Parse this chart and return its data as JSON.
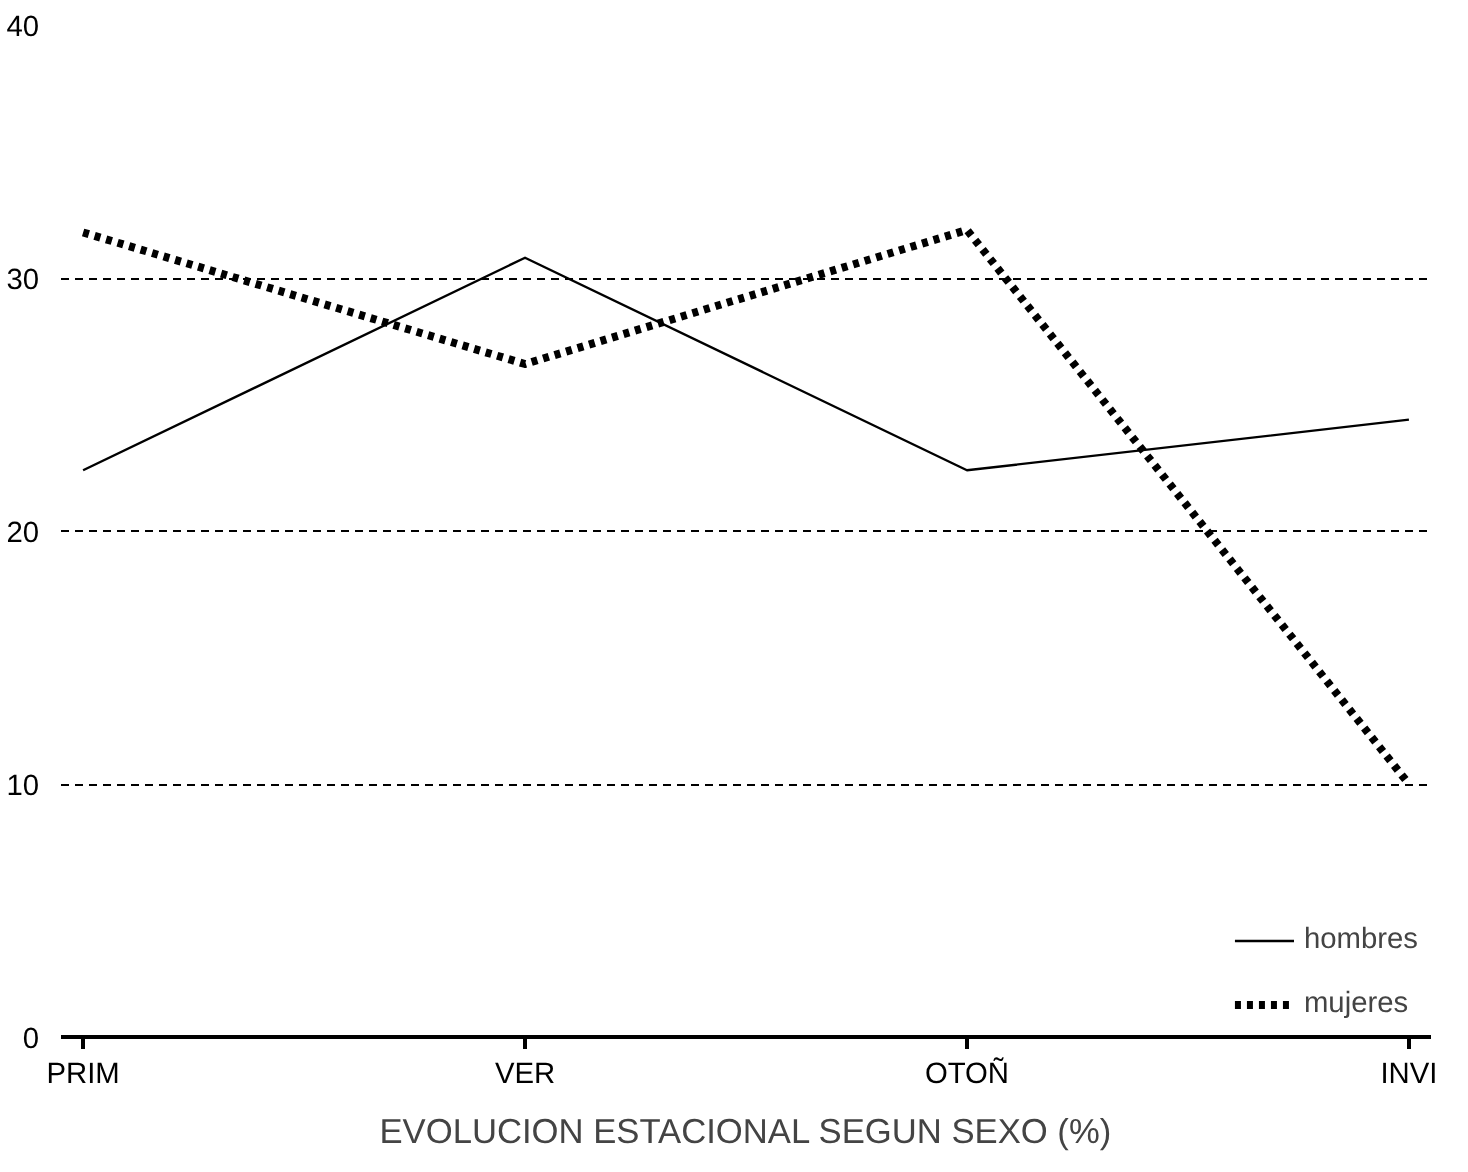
{
  "chart_data": {
    "type": "line",
    "title": "EVOLUCION ESTACIONAL SEGUN SEXO (%)",
    "categories": [
      "PRIM",
      "VER",
      "OTOÑ",
      "INVI"
    ],
    "series": [
      {
        "name": "hombres",
        "color": "#000000",
        "line_style": "solid",
        "values": [
          22.4,
          30.8,
          22.4,
          24.4
        ]
      },
      {
        "name": "mujeres",
        "color": "#000000",
        "line_style": "dotted",
        "values": [
          31.8,
          26.6,
          31.9,
          10.0
        ]
      }
    ],
    "ylim": [
      0,
      40
    ],
    "yticks": [
      0,
      10,
      20,
      30,
      40
    ],
    "grid": "y",
    "legend": "bottom right"
  }
}
